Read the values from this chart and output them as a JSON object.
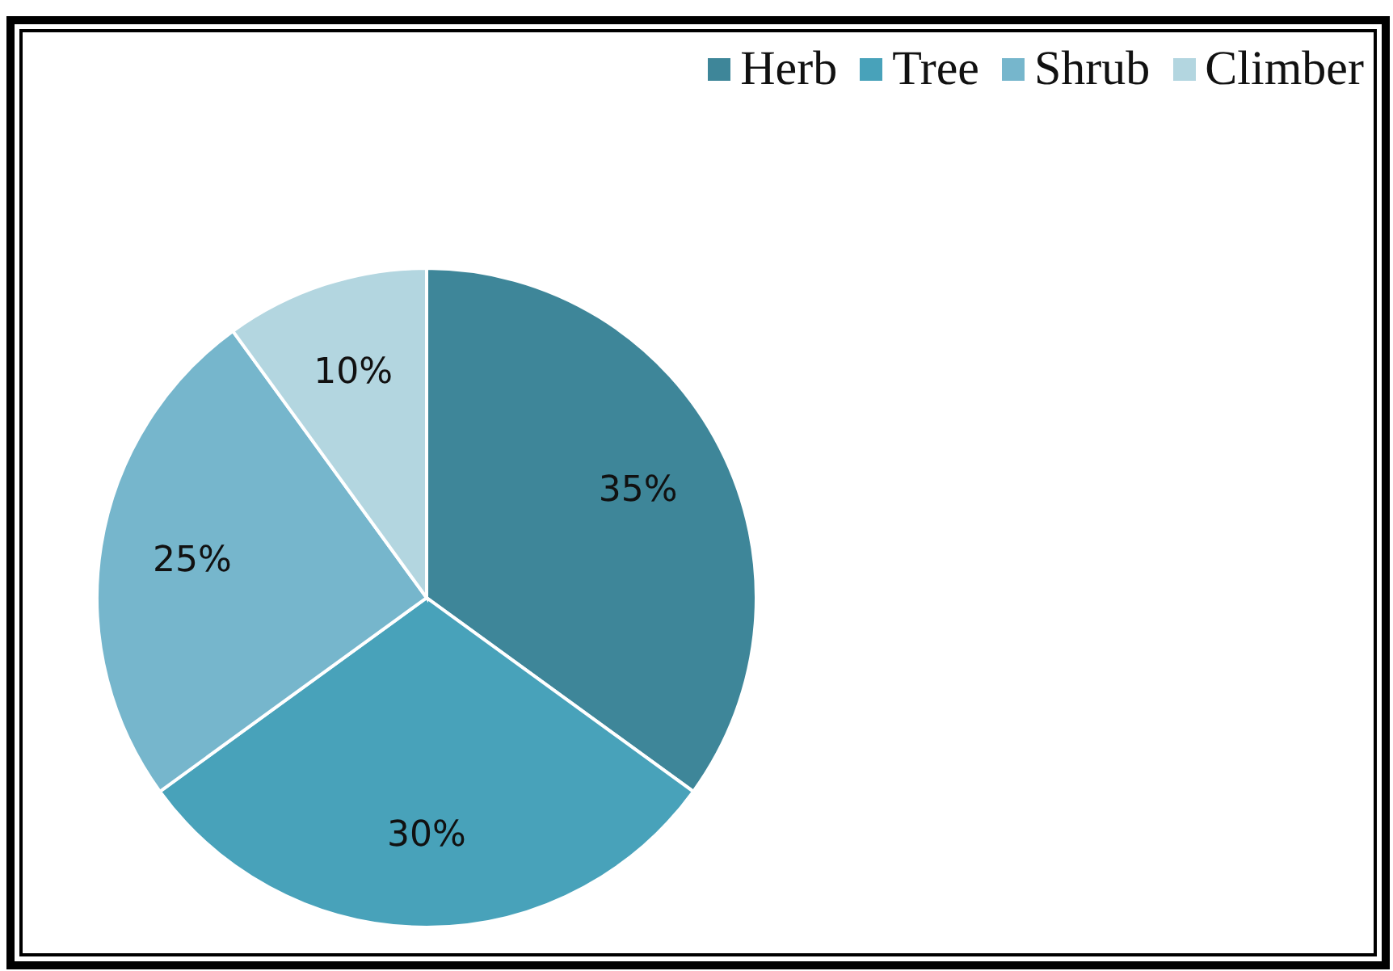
{
  "chart_data": {
    "type": "pie",
    "categories": [
      "Herb",
      "Tree",
      "Shrub",
      "Climber"
    ],
    "values": [
      35,
      30,
      25,
      10
    ],
    "value_labels": [
      "35%",
      "30%",
      "25%",
      "10%"
    ],
    "colors": [
      "#3e8699",
      "#48a2ba",
      "#76b6cc",
      "#b3d6e0"
    ],
    "legend": "top right"
  }
}
